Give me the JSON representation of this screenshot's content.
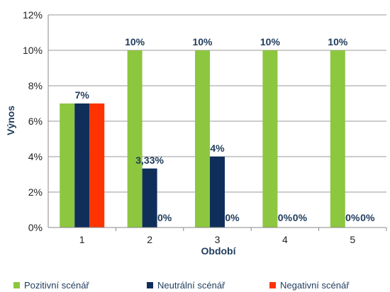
{
  "chart_data": {
    "type": "bar",
    "xlabel": "Období",
    "ylabel": "Výnos",
    "ylim": [
      0,
      12
    ],
    "yticks": [
      "0%",
      "2%",
      "4%",
      "6%",
      "8%",
      "10%",
      "12%"
    ],
    "categories": [
      "1",
      "2",
      "3",
      "4",
      "5"
    ],
    "grid": true,
    "legend_position": "bottom",
    "series": [
      {
        "name": "Pozitivní scénář",
        "color": "#8dc63f",
        "values": [
          7,
          10,
          10,
          10,
          10
        ],
        "labels": [
          "",
          "10%",
          "10%",
          "10%",
          "10%"
        ]
      },
      {
        "name": "Neutrální scénář",
        "color": "#0f2f5a",
        "values": [
          7,
          3.33,
          4,
          0,
          0
        ],
        "labels": [
          "7%",
          "3,33%",
          "4%",
          "0%",
          "0%"
        ]
      },
      {
        "name": "Negativní scénář",
        "color": "#ff3300",
        "values": [
          7,
          0,
          0,
          0,
          0
        ],
        "labels": [
          "",
          "0%",
          "0%",
          "0%",
          "0%"
        ]
      }
    ]
  }
}
